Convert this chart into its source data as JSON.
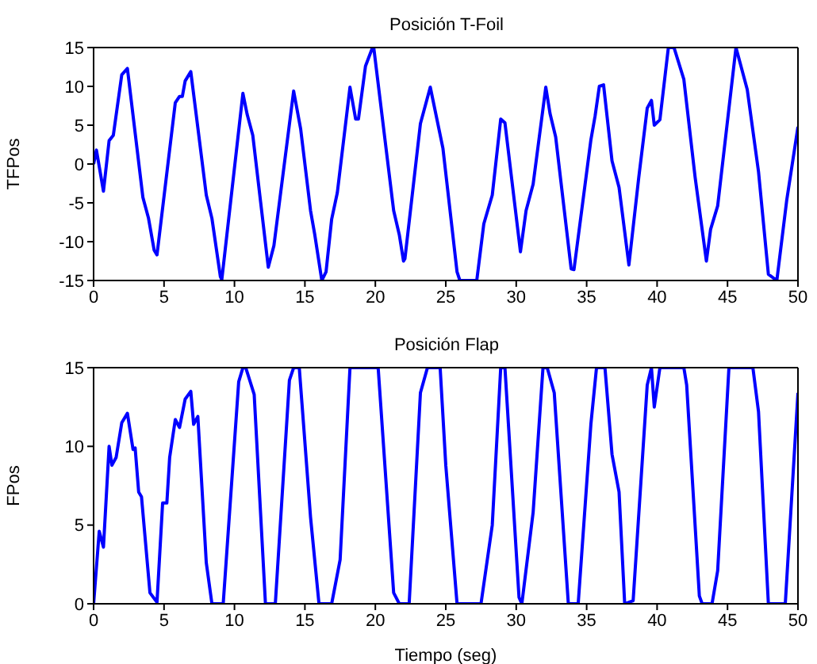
{
  "chart_data": [
    {
      "type": "line",
      "title": "Posición T-Foil",
      "ylabel": "TFPos",
      "grid": false,
      "legend": false,
      "marker": "none",
      "line_style": "solid",
      "xlim": [
        0,
        50
      ],
      "xticks": [
        0,
        5,
        10,
        15,
        20,
        25,
        30,
        35,
        40,
        45,
        50
      ],
      "ylim": [
        -15,
        15
      ],
      "yticks": [
        -15,
        -10,
        -5,
        0,
        5,
        10,
        15
      ],
      "series": [
        {
          "color": "#0000ff",
          "x": [
            0,
            0.2,
            0.7,
            1.1,
            1.4,
            2.0,
            2.4,
            3.5,
            3.9,
            4.3,
            4.5,
            5.8,
            6.1,
            6.3,
            6.5,
            6.9,
            8.0,
            8.4,
            9.0,
            9.1,
            10.6,
            10.9,
            11.3,
            12.4,
            12.8,
            14.2,
            14.7,
            15.4,
            15.7,
            16.2,
            16.5,
            16.9,
            17.3,
            18.2,
            18.6,
            18.8,
            19.3,
            19.8,
            19.9,
            21.3,
            21.7,
            22.0,
            22.1,
            23.2,
            23.9,
            24.8,
            25.8,
            26.0,
            27.2,
            27.7,
            28.3,
            28.9,
            29.2,
            30.3,
            30.7,
            31.2,
            32.1,
            32.4,
            32.8,
            33.9,
            34.1,
            35.3,
            35.6,
            35.9,
            36.2,
            36.8,
            37.3,
            38.0,
            38.7,
            39.3,
            39.6,
            39.8,
            40.2,
            40.8,
            41.2,
            41.9,
            42.7,
            43.5,
            43.8,
            44.3,
            45.6,
            46.4,
            47.2,
            47.9,
            48.5,
            49.2,
            50.0
          ],
          "values": [
            0,
            1.8,
            -3.5,
            3,
            3.7,
            11.5,
            12.3,
            -4.3,
            -7,
            -11.1,
            -11.7,
            7.9,
            8.7,
            8.7,
            10.7,
            11.9,
            -4,
            -7,
            -14.5,
            -14.9,
            9.1,
            6.4,
            3.7,
            -13.3,
            -10.5,
            9.4,
            4.5,
            -6,
            -9.1,
            -15,
            -13.9,
            -7.1,
            -3.7,
            9.9,
            5.8,
            5.8,
            12.6,
            15,
            14.8,
            -6,
            -9.1,
            -12.5,
            -12.2,
            5.2,
            9.9,
            2,
            -13.9,
            -15,
            -15,
            -7.7,
            -4,
            5.8,
            5.3,
            -11.3,
            -6,
            -2.6,
            9.9,
            6.5,
            3.5,
            -13.5,
            -13.6,
            3.1,
            6.2,
            10,
            10.2,
            0.4,
            -3,
            -13,
            -1.7,
            7.2,
            8.2,
            5,
            5.7,
            15,
            15,
            10.9,
            -1.7,
            -12.5,
            -8.4,
            -5.4,
            15,
            9.6,
            -1,
            -14.2,
            -15,
            -4.7,
            4.8
          ]
        }
      ]
    },
    {
      "type": "line",
      "title": "Posición Flap",
      "xlabel": "Tiempo (seg)",
      "ylabel": "FPos",
      "grid": false,
      "legend": false,
      "marker": "none",
      "line_style": "solid",
      "xlim": [
        0,
        50
      ],
      "xticks": [
        0,
        5,
        10,
        15,
        20,
        25,
        30,
        35,
        40,
        45,
        50
      ],
      "ylim": [
        0,
        15
      ],
      "yticks": [
        0,
        5,
        10,
        15
      ],
      "series": [
        {
          "color": "#0000ff",
          "x": [
            0,
            0.4,
            0.7,
            1.1,
            1.3,
            1.6,
            2.0,
            2.4,
            2.8,
            2.95,
            3.2,
            3.4,
            4.0,
            4.5,
            4.9,
            5.2,
            5.4,
            5.8,
            6.1,
            6.5,
            6.9,
            7.1,
            7.4,
            8.0,
            8.4,
            9.2,
            10.3,
            10.6,
            10.8,
            11.4,
            12.2,
            12.9,
            13.9,
            14.2,
            14.6,
            15.4,
            16.0,
            16.9,
            17.5,
            18.2,
            20.2,
            21.3,
            21.7,
            22.4,
            23.2,
            23.7,
            24.6,
            25.0,
            25.8,
            27.5,
            28.3,
            28.9,
            29.2,
            30.2,
            30.4,
            31.2,
            31.9,
            32.2,
            32.7,
            33.7,
            34.4,
            35.3,
            35.7,
            36.3,
            36.8,
            37.3,
            37.7,
            38.3,
            39.3,
            39.6,
            39.8,
            40.2,
            41.9,
            42.1,
            43.0,
            43.2,
            43.9,
            44.3,
            45.1,
            46.8,
            47.2,
            47.9,
            49.1,
            50
          ],
          "values": [
            0,
            4.6,
            3.6,
            10,
            8.8,
            9.3,
            11.5,
            12.1,
            9.8,
            9.9,
            7.1,
            6.8,
            0.7,
            0.1,
            6.4,
            6.4,
            9.3,
            11.7,
            11.2,
            13,
            13.5,
            11.4,
            11.9,
            2.6,
            0,
            0,
            14.1,
            15,
            15,
            13.3,
            0,
            0,
            14.2,
            15,
            15,
            5.5,
            0,
            0,
            2.8,
            15,
            15,
            0.7,
            0,
            0,
            13.4,
            15,
            15,
            8.8,
            0,
            0,
            5,
            15,
            15,
            0.4,
            0,
            5.8,
            15,
            15,
            13.4,
            0,
            0,
            11.4,
            15,
            15,
            9.5,
            7.1,
            0,
            0.2,
            13.9,
            15,
            12.5,
            15,
            15,
            13.9,
            0.5,
            0,
            0,
            2.1,
            15,
            15,
            12.2,
            0,
            0,
            13.4
          ]
        }
      ]
    }
  ]
}
